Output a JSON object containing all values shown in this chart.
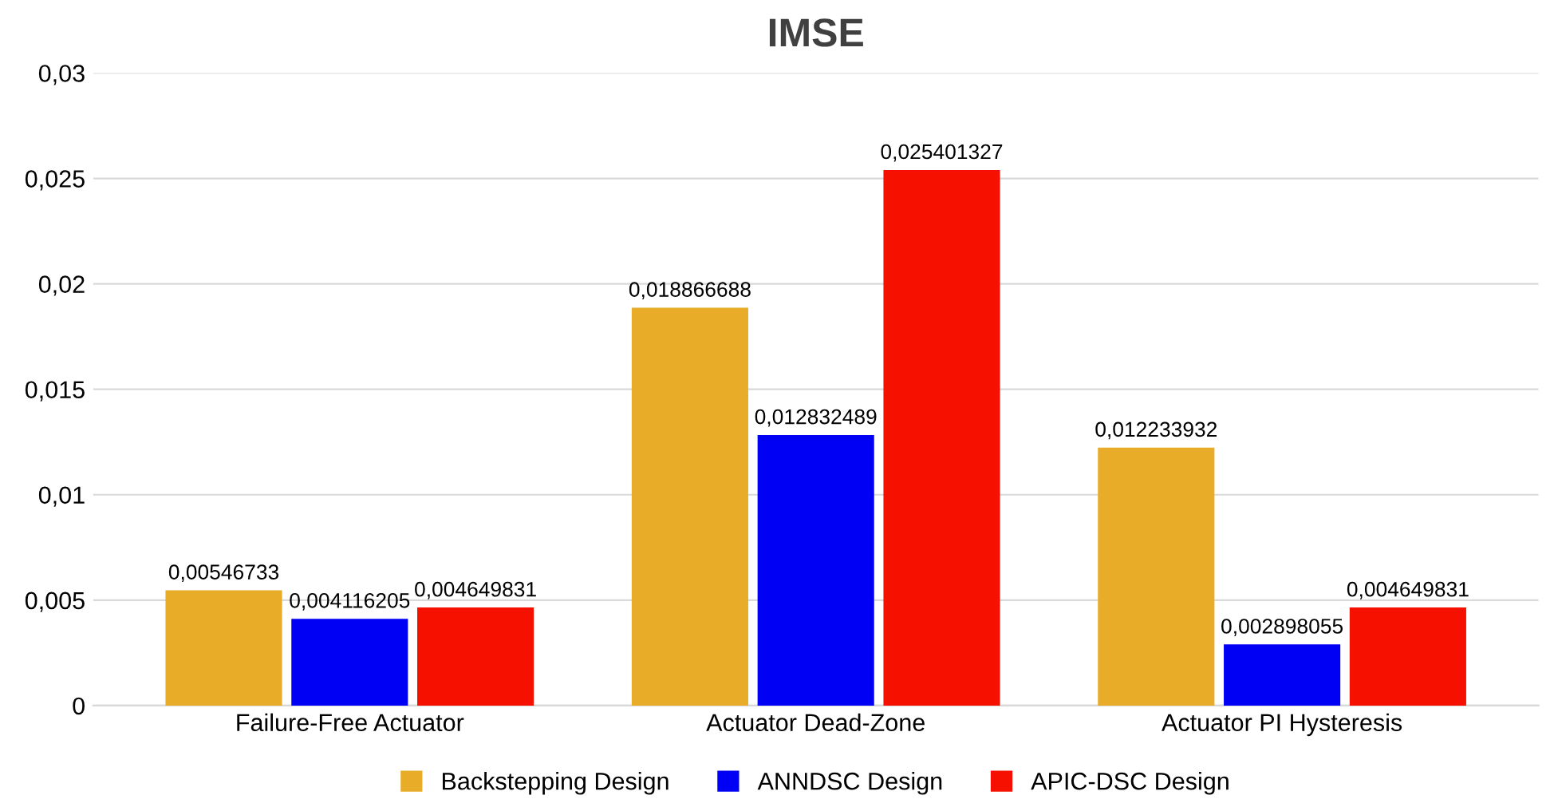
{
  "chart_data": {
    "type": "bar",
    "title": "IMSE",
    "categories": [
      "Failure-Free Actuator",
      "Actuator Dead-Zone",
      "Actuator PI Hysteresis"
    ],
    "series": [
      {
        "name": "Backstepping Design",
        "color": "#e8ac28",
        "values": [
          0.00546733,
          0.018866688,
          0.012233932
        ],
        "value_labels": [
          "0,00546733",
          "0,018866688",
          "0,012233932"
        ]
      },
      {
        "name": "ANNDSC Design",
        "color": "#0000f5",
        "values": [
          0.004116205,
          0.012832489,
          0.002898055
        ],
        "value_labels": [
          "0,004116205",
          "0,012832489",
          "0,002898055"
        ]
      },
      {
        "name": "APIC-DSC Design",
        "color": "#f51000",
        "values": [
          0.004649831,
          0.025401327,
          0.004649831
        ],
        "value_labels": [
          "0,004649831",
          "0,025401327",
          "0,004649831"
        ]
      }
    ],
    "ylim": [
      0,
      0.03
    ],
    "yticks": [
      0,
      {
        "value": 0.005,
        "label": "0,005"
      },
      {
        "value": 0.01,
        "label": "0,01"
      },
      {
        "value": 0.015,
        "label": "0,015"
      },
      {
        "value": 0.02,
        "label": "0,02"
      },
      {
        "value": 0.025,
        "label": "0,025"
      },
      {
        "value": 0.03,
        "label": "0,03"
      }
    ],
    "grid": "y",
    "legend": "bottom"
  }
}
